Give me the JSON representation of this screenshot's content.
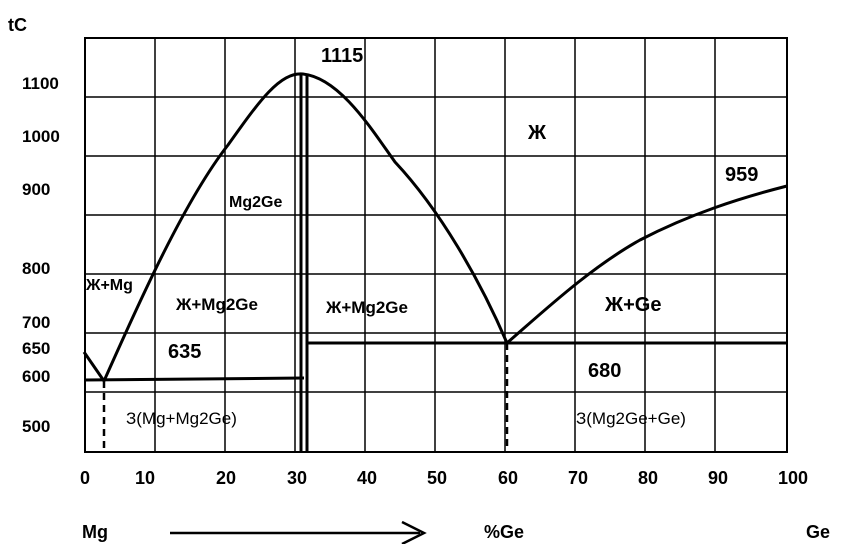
{
  "diagram": {
    "axis_title_y": "tC",
    "y_tick_labels": [
      "1100",
      "1000",
      "900",
      "800",
      "700",
      "650",
      "600",
      "500"
    ],
    "x_tick_labels": [
      "0",
      "10",
      "20",
      "30",
      "40",
      "50",
      "60",
      "70",
      "80",
      "90",
      "100"
    ],
    "bottom_left_label": "Mg",
    "bottom_center_label": "%Ge",
    "bottom_right_label": "Ge",
    "points": {
      "compound_max": "1115",
      "ge_melting": "959",
      "eutectic_left": "635",
      "eutectic_right": "680"
    },
    "regions": {
      "liquid": "Ж",
      "liq_mg": "Ж+Mg",
      "liq_mg2ge_left": "Ж+Mg2Ge",
      "liq_mg2ge_right": "Ж+Mg2Ge",
      "liq_ge": "Ж+Ge",
      "compound": "Mg2Ge",
      "solid_left": "З(Mg+Mg2Ge)",
      "solid_right": "З(Mg2Ge+Ge)"
    }
  }
}
